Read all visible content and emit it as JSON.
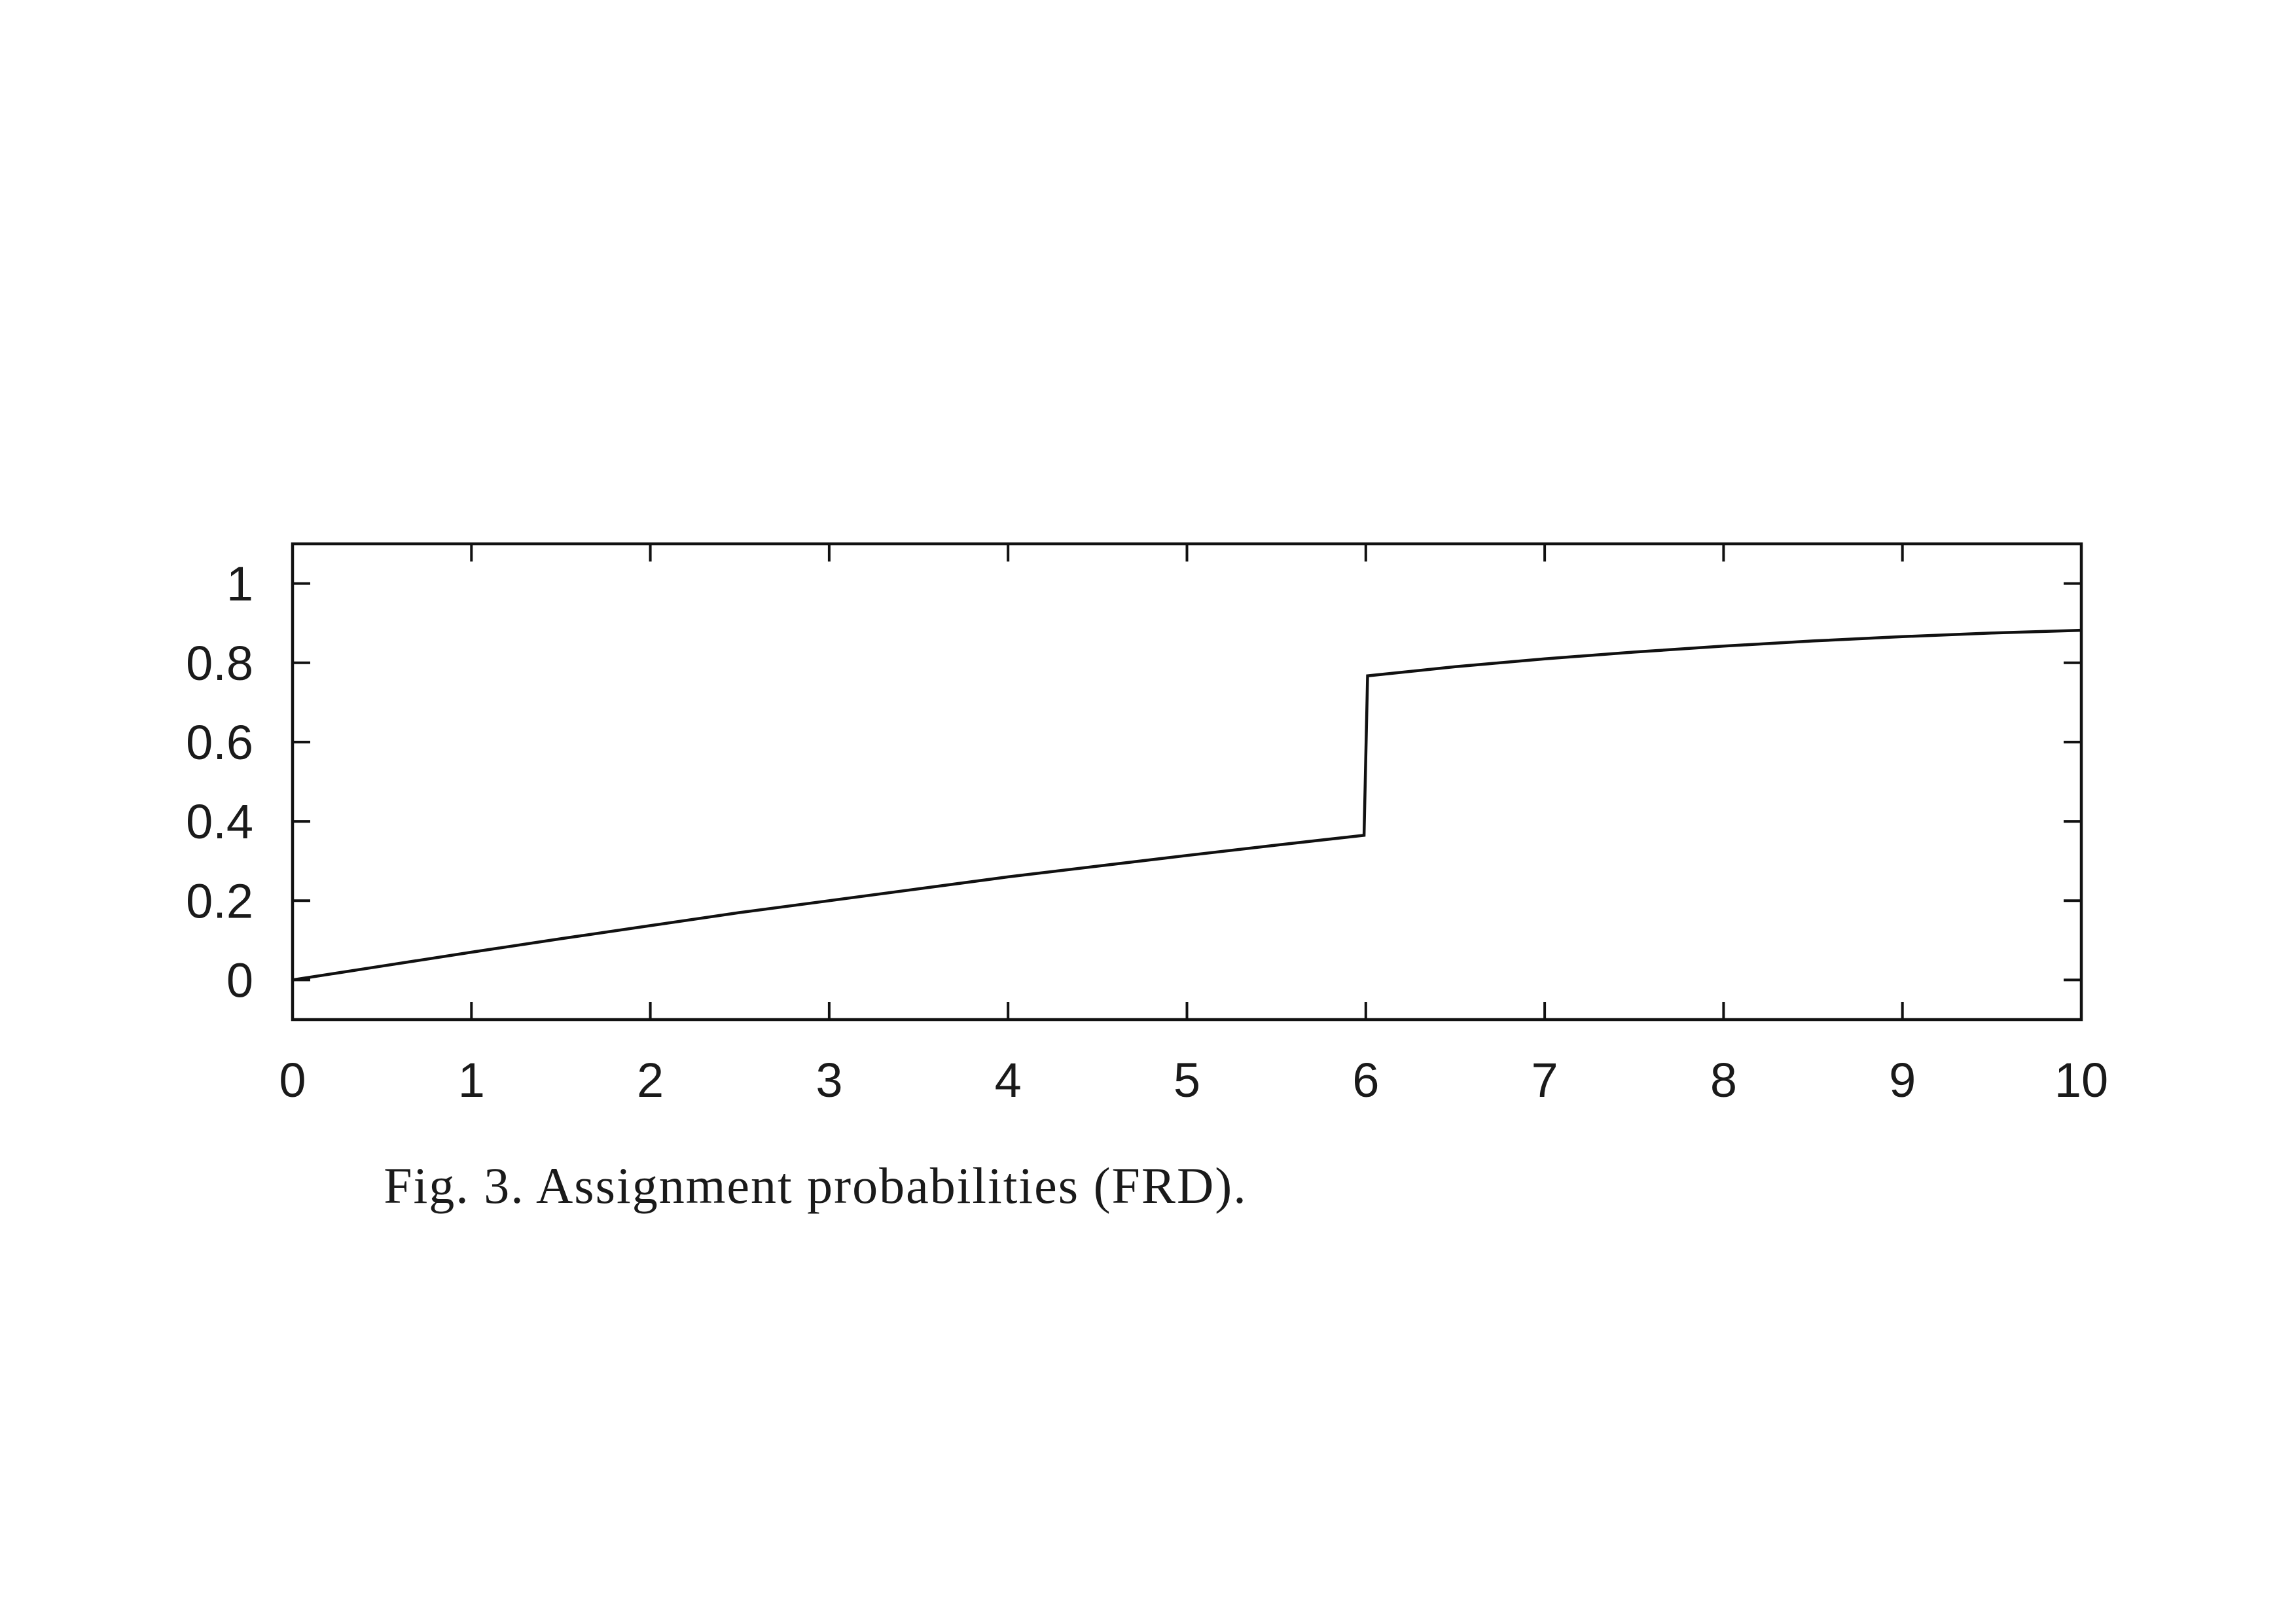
{
  "figure": {
    "caption": "Fig. 3.  Assignment probabilities (FRD)."
  },
  "chart_data": {
    "type": "line",
    "title": "",
    "xlabel": "",
    "ylabel": "",
    "xlim": [
      0,
      10
    ],
    "ylim": [
      -0.1,
      1.1
    ],
    "x_ticks": [
      0,
      1,
      2,
      3,
      4,
      5,
      6,
      7,
      8,
      9,
      10
    ],
    "x_tick_labels": [
      "0",
      "1",
      "2",
      "3",
      "4",
      "5",
      "6",
      "7",
      "8",
      "9",
      "10"
    ],
    "y_ticks": [
      0,
      0.2,
      0.4,
      0.6,
      0.8,
      1
    ],
    "y_tick_labels": [
      "0",
      "0.2",
      "0.4",
      "0.6",
      "0.8",
      "1"
    ],
    "grid": false,
    "legend": "none",
    "line_color": "#111111",
    "series": [
      {
        "x": [
          0,
          0.5,
          1,
          1.5,
          2,
          2.5,
          3,
          3.5,
          4,
          4.5,
          5,
          5.5,
          5.99,
          6.01,
          6.5,
          7,
          7.5,
          8,
          8.5,
          9,
          9.5,
          10
        ],
        "y": [
          0,
          0.035,
          0.07,
          0.104,
          0.137,
          0.17,
          0.2,
          0.23,
          0.26,
          0.287,
          0.314,
          0.34,
          0.365,
          0.767,
          0.79,
          0.81,
          0.827,
          0.842,
          0.855,
          0.866,
          0.875,
          0.882
        ]
      }
    ]
  }
}
